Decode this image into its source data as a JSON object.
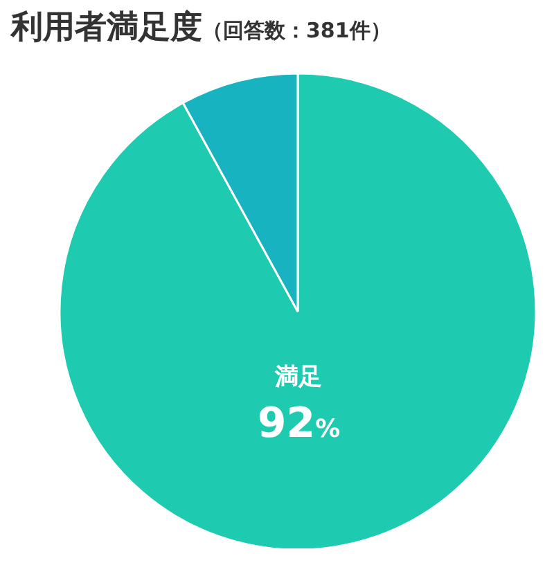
{
  "chart_data": {
    "type": "pie",
    "title": "利用者満足度",
    "subtitle": "（回答数：381件）",
    "categories": [
      "満足",
      null
    ],
    "values": [
      92,
      8
    ],
    "colors": [
      "#1ecbb0",
      "#17b3c1"
    ],
    "value_labels": [
      "92%",
      null
    ],
    "legend": false
  }
}
